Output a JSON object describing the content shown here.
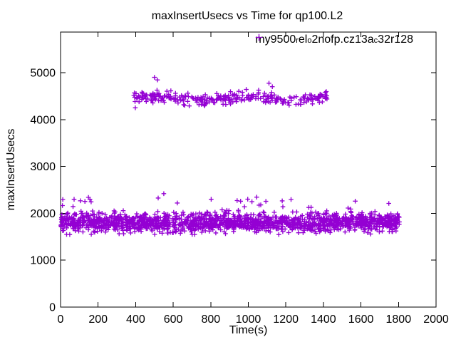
{
  "window": {
    "background": "#ffffff"
  },
  "chart_data": {
    "type": "scatter",
    "title": "maxInsertUsecs vs Time for qp100.L2",
    "xlabel": "Time(s)",
    "ylabel": "maxInsertUsecs",
    "xlim": [
      0,
      2000
    ],
    "ylim": [
      0,
      5866
    ],
    "xticks": [
      0,
      200,
      400,
      600,
      800,
      1000,
      1200,
      1400,
      1600,
      1800,
      2000
    ],
    "yticks": [
      0,
      1000,
      2000,
      3000,
      4000,
      5000
    ],
    "grid": false,
    "legend": {
      "position": "top-right-inside",
      "marker": "plus"
    },
    "axis_color": "#000000",
    "text_color": "#000000",
    "seed": 1397,
    "series": [
      {
        "name": "my9500_rel_o2nofp.cz13a_c32r128",
        "label_segments": [
          {
            "text": "my9500",
            "sub": false
          },
          {
            "text": "r",
            "sub": true
          },
          {
            "text": "el",
            "sub": false
          },
          {
            "text": "o",
            "sub": true
          },
          {
            "text": "2nofp.cz13a",
            "sub": false
          },
          {
            "text": "c",
            "sub": true
          },
          {
            "text": "32r128",
            "sub": false
          }
        ],
        "color": "#9400d3",
        "marker": "plus",
        "clusters": [
          {
            "kind": "gauss-band",
            "note": "steady latency band ~1550-2070 usecs across whole run",
            "x_range": [
              0,
              1805
            ],
            "count": 1600,
            "y_center": 1800,
            "y_sd": 100,
            "y_clip": [
              1545,
              2070
            ],
            "meander_amp": 15,
            "meander_period": 700
          },
          {
            "kind": "uniform",
            "note": "sparse spikes above the main band",
            "x_range": [
              5,
              1800
            ],
            "count": 30,
            "y_range": [
              2065,
              2360
            ]
          },
          {
            "kind": "gauss-band",
            "note": "elevated band ~4280-4660 usecs between t=390s and t=1420s",
            "x_range": [
              390,
              1420
            ],
            "count": 300,
            "y_center": 4455,
            "y_sd": 62,
            "y_clip": [
              4280,
              4660
            ],
            "meander_amp": 40,
            "meander_period": 500
          }
        ],
        "notable_points": [
          [
            500,
            4900
          ],
          [
            516,
            4845
          ],
          [
            1110,
            4775
          ],
          [
            1128,
            4700
          ],
          [
            398,
            4250
          ],
          [
            1415,
            4595
          ],
          [
            550,
            2420
          ],
          [
            72,
            2300
          ]
        ]
      }
    ]
  }
}
